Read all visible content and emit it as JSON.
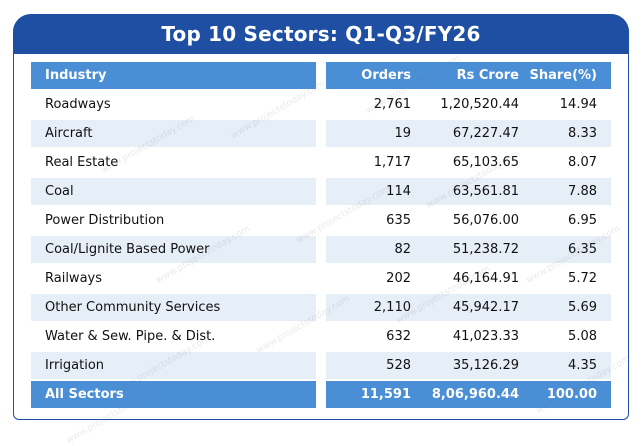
{
  "chart_data": {
    "type": "table",
    "title": "Top 10 Sectors: Q1-Q3/FY26",
    "columns": [
      "Industry",
      "Orders",
      "Rs Crore",
      "Share(%)"
    ],
    "rows": [
      {
        "industry": "Roadways",
        "orders": "2,761",
        "rs_crore": "1,20,520.44",
        "share": "14.94"
      },
      {
        "industry": "Aircraft",
        "orders": "19",
        "rs_crore": "67,227.47",
        "share": "8.33"
      },
      {
        "industry": "Real Estate",
        "orders": "1,717",
        "rs_crore": "65,103.65",
        "share": "8.07"
      },
      {
        "industry": "Coal",
        "orders": "114",
        "rs_crore": "63,561.81",
        "share": "7.88"
      },
      {
        "industry": "Power Distribution",
        "orders": "635",
        "rs_crore": "56,076.00",
        "share": "6.95"
      },
      {
        "industry": "Coal/Lignite Based Power",
        "orders": "82",
        "rs_crore": "51,238.72",
        "share": "6.35"
      },
      {
        "industry": "Railways",
        "orders": "202",
        "rs_crore": "46,164.91",
        "share": "5.72"
      },
      {
        "industry": "Other Community Services",
        "orders": "2,110",
        "rs_crore": "45,942.17",
        "share": "5.69"
      },
      {
        "industry": "Water & Sew. Pipe. & Dist.",
        "orders": "632",
        "rs_crore": "41,023.33",
        "share": "5.08"
      },
      {
        "industry": "Irrigation",
        "orders": "528",
        "rs_crore": "35,126.29",
        "share": "4.35"
      }
    ],
    "total": {
      "industry": "All Sectors",
      "orders": "11,591",
      "rs_crore": "8,06,960.44",
      "share": "100.00"
    }
  },
  "colors": {
    "title_bg": "#1f4fa3",
    "header_bg": "#4a8ed6",
    "alt_row_bg": "#e6eef8"
  },
  "watermark_text": "www.projectstoday.com"
}
